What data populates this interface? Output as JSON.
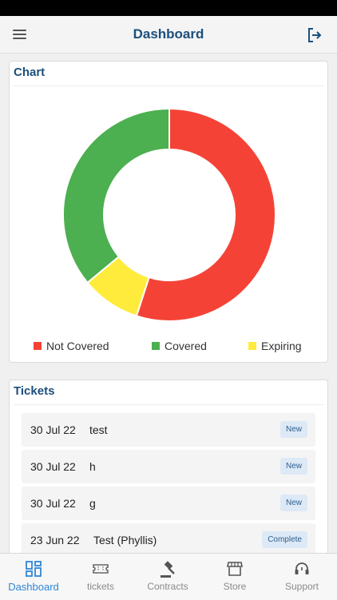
{
  "header": {
    "title": "Dashboard",
    "menu_icon": "hamburger-menu-icon",
    "logout_icon": "logout-icon"
  },
  "chart_card": {
    "title": "Chart",
    "legend": [
      {
        "label": "Not Covered",
        "color": "#f44336"
      },
      {
        "label": "Covered",
        "color": "#4caf50"
      },
      {
        "label": "Expiring",
        "color": "#ffeb3b"
      }
    ]
  },
  "chart_data": {
    "type": "pie",
    "variant": "donut",
    "categories": [
      "Not Covered",
      "Expiring",
      "Covered"
    ],
    "values": [
      55,
      9,
      36
    ],
    "colors": [
      "#f44336",
      "#ffeb3b",
      "#4caf50"
    ],
    "legend_position": "bottom"
  },
  "tickets_card": {
    "title": "Tickets",
    "items": [
      {
        "date": "30 Jul 22",
        "name": "test",
        "status": "New"
      },
      {
        "date": "30 Jul 22",
        "name": "h",
        "status": "New"
      },
      {
        "date": "30 Jul 22",
        "name": "g",
        "status": "New"
      },
      {
        "date": "23 Jun 22",
        "name": "Test (Phyllis)",
        "status": "Complete"
      }
    ]
  },
  "tabs": [
    {
      "label": "Dashboard",
      "icon": "dashboard-grid-icon",
      "active": true
    },
    {
      "label": "tickets",
      "icon": "ticket-icon",
      "active": false
    },
    {
      "label": "Contracts",
      "icon": "gavel-icon",
      "active": false
    },
    {
      "label": "Store",
      "icon": "store-icon",
      "active": false
    },
    {
      "label": "Support",
      "icon": "headset-icon",
      "active": false
    }
  ]
}
